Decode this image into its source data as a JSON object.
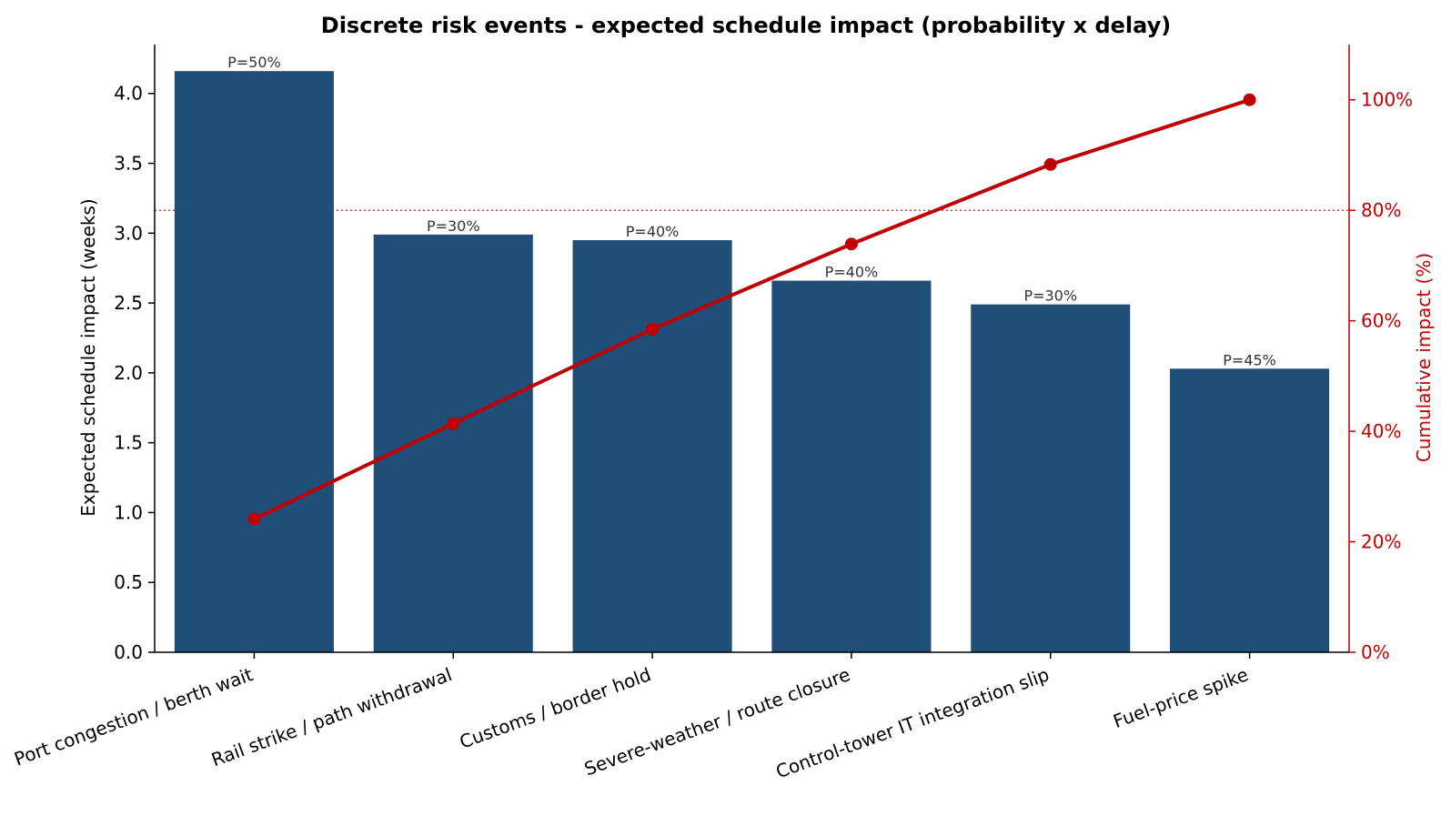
{
  "chart_data": {
    "type": "bar",
    "title": "Discrete risk events - expected schedule impact (probability x delay)",
    "categories": [
      "Port congestion / berth wait",
      "Rail strike / path withdrawal",
      "Customs / border hold",
      "Severe-weather / route closure",
      "Control-tower IT integration slip",
      "Fuel-price spike"
    ],
    "values": [
      4.16,
      2.99,
      2.95,
      2.66,
      2.49,
      2.03
    ],
    "bar_labels": [
      "P=50%",
      "P=30%",
      "P=40%",
      "P=40%",
      "P=30%",
      "P=45%"
    ],
    "cumulative_pct": [
      24.1,
      41.4,
      58.5,
      73.9,
      88.3,
      100.0
    ],
    "ylabel": "Expected schedule impact  (weeks)",
    "y2label": "Cumulative impact  (%)",
    "ylim": [
      0,
      4.35
    ],
    "y2lim": [
      0,
      110
    ],
    "yticks": [
      0.0,
      0.5,
      1.0,
      1.5,
      2.0,
      2.5,
      3.0,
      3.5,
      4.0
    ],
    "y2ticks": [
      0,
      20,
      40,
      60,
      80,
      100
    ],
    "reference_line_pct": 80,
    "grid": false,
    "colors": {
      "bar": "#1f4e79",
      "line": "#c00000",
      "axis": "#000000"
    }
  }
}
